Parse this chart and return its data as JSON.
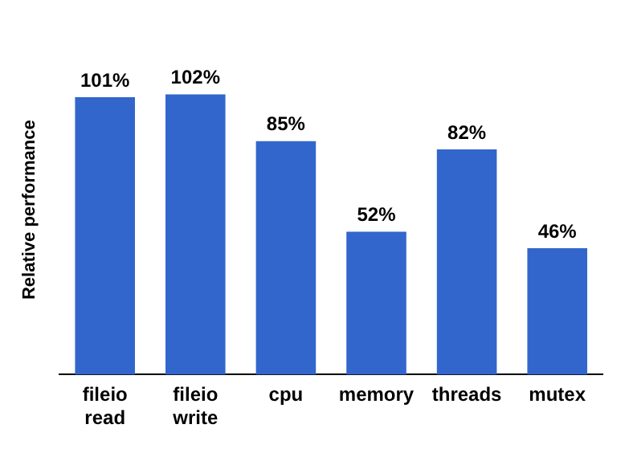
{
  "chart_data": {
    "type": "bar",
    "ylabel": "Relative performance",
    "categories": [
      "fileio read",
      "fileio write",
      "cpu",
      "memory",
      "threads",
      "mutex"
    ],
    "values": [
      101,
      102,
      85,
      52,
      82,
      46
    ],
    "value_labels": [
      "101%",
      "102%",
      "85%",
      "52%",
      "82%",
      "46%"
    ],
    "color": "#3366cc",
    "grid": false,
    "legend": false
  }
}
